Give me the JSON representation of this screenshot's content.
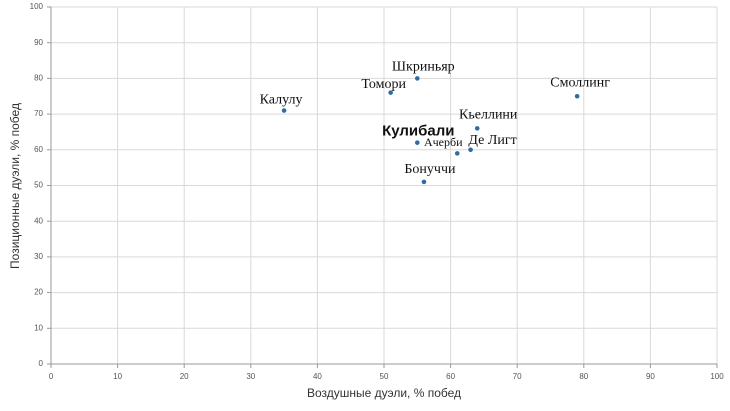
{
  "chart_data": {
    "type": "scatter",
    "x_label": "Воздушные дуэли, % побед",
    "y_label": "Позиционные дуэли, % побед",
    "labels": [
      "Калулу",
      "Томори",
      "Шкриньяр",
      "Смоллинг",
      "Кьеллини",
      "Кулибали",
      "Ачерби",
      "Де Лигт",
      "Бонуччи"
    ],
    "x": [
      35,
      51,
      55,
      79,
      64,
      55,
      61,
      63,
      56
    ],
    "values": [
      71,
      76,
      80,
      75,
      66,
      62,
      59,
      60,
      51
    ],
    "color": "#2e6da4",
    "xlim": [
      0,
      100
    ],
    "xticks": [
      0,
      10,
      20,
      30,
      40,
      50,
      60,
      70,
      80,
      90,
      100
    ],
    "ylim": [
      0,
      100
    ],
    "yticks": [
      0,
      10,
      20,
      30,
      40,
      50,
      60,
      70,
      80,
      90,
      100
    ],
    "grid": true
  }
}
